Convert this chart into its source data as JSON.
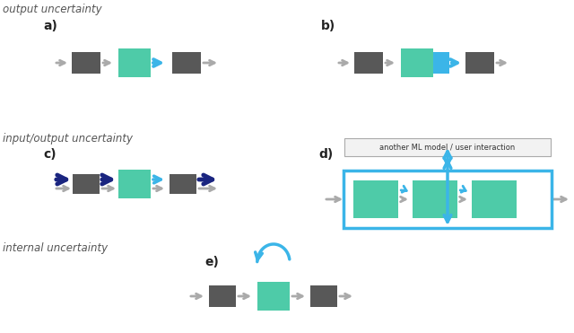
{
  "bg_color": "#ffffff",
  "gray_box_color": "#585858",
  "teal_box_color": "#4ecba8",
  "blue_color": "#3bb5e8",
  "dark_blue_color": "#1a2580",
  "gray_arrow_color": "#aaaaaa",
  "section1": "output uncertainty",
  "section2": "input/output uncertainty",
  "section3": "internal uncertainty",
  "ml_label": "another ML model / user interaction",
  "label_a": "a)",
  "label_b": "b)",
  "label_c": "c)",
  "label_d": "d)",
  "label_e": "e)"
}
